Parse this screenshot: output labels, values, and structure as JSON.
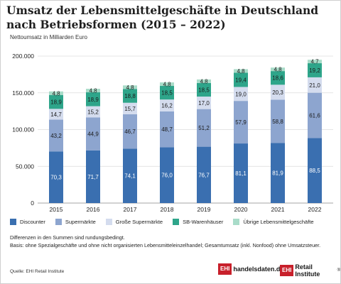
{
  "title": "Umsatz der Lebensmittelgeschäfte in Deutschland nach Betriebsformen (2015 – 2022)",
  "subtitle": "Nettoumsatz in Milliarden Euro",
  "notes": [
    "Differenzen in den Summen sind rundungsbedingt.",
    "Basis: ohne Spezialgeschäfte und ohne nicht organisierten Lebensmitteleinzelhandel; Gesamtumsatz (inkl. Nonfood) ohne Umsatzsteuer."
  ],
  "source": "Quelle: EHI Retail Institute",
  "logos": {
    "logo1_box": "EHI",
    "logo1_text": "handelsdaten.de",
    "logo2_box": "EHI",
    "logo2_text": "Retail Institute",
    "logo2_mark": "®"
  },
  "chart_data": {
    "type": "bar",
    "stacked": true,
    "categories": [
      "2015",
      "2016",
      "2017",
      "2018",
      "2019",
      "2020",
      "2021",
      "2022"
    ],
    "ylim": [
      0,
      200000
    ],
    "yticks": [
      0,
      50000,
      100000,
      150000,
      200000
    ],
    "ytick_labels": [
      "0",
      "50.000",
      "100.000",
      "150.000",
      "200.000"
    ],
    "grid": true,
    "legend_position": "bottom",
    "series": [
      {
        "name": "Discounter",
        "color": "#3a6fb0",
        "label_color": "#ffffff",
        "values": [
          70.3,
          71.7,
          74.1,
          76.0,
          76.7,
          81.1,
          81.9,
          88.5
        ],
        "labels": [
          "70,3",
          "71,7",
          "74,1",
          "76,0",
          "76,7",
          "81,1",
          "81,9",
          "88,5"
        ]
      },
      {
        "name": "Supermärkte",
        "color": "#8da5cf",
        "label_color": "#1a1a1a",
        "values": [
          43.2,
          44.9,
          46.7,
          48.7,
          51.2,
          57.9,
          58.8,
          61.6
        ],
        "labels": [
          "43,2",
          "44,9",
          "46,7",
          "48,7",
          "51,2",
          "57,9",
          "58,8",
          "61,6"
        ]
      },
      {
        "name": "Große Supermärkte",
        "color": "#d4dcee",
        "label_color": "#1a1a1a",
        "values": [
          14.7,
          15.2,
          15.7,
          16.2,
          17.0,
          19.0,
          20.3,
          21.0
        ],
        "labels": [
          "14,7",
          "15,2",
          "15,7",
          "16,2",
          "17,0",
          "19,0",
          "20,3",
          "21,0"
        ]
      },
      {
        "name": "SB-Warenhäuser",
        "color": "#2ea58a",
        "label_color": "#1a1a1a",
        "values": [
          18.9,
          18.9,
          18.8,
          18.5,
          18.5,
          19.4,
          18.6,
          19.2
        ],
        "labels": [
          "18,9",
          "18,9",
          "18,8",
          "18,5",
          "18,5",
          "19,4",
          "18,6",
          "19,2"
        ]
      },
      {
        "name": "Übrige Lebensmittelgeschäfte",
        "color": "#a9dcc9",
        "label_color": "#1a1a1a",
        "values": [
          4.8,
          4.8,
          4.8,
          4.8,
          4.8,
          4.8,
          4.8,
          4.7
        ],
        "labels": [
          "4,8",
          "4,8",
          "4,8",
          "4,8",
          "4,8",
          "4,8",
          "4,8",
          "4,7"
        ]
      }
    ]
  }
}
